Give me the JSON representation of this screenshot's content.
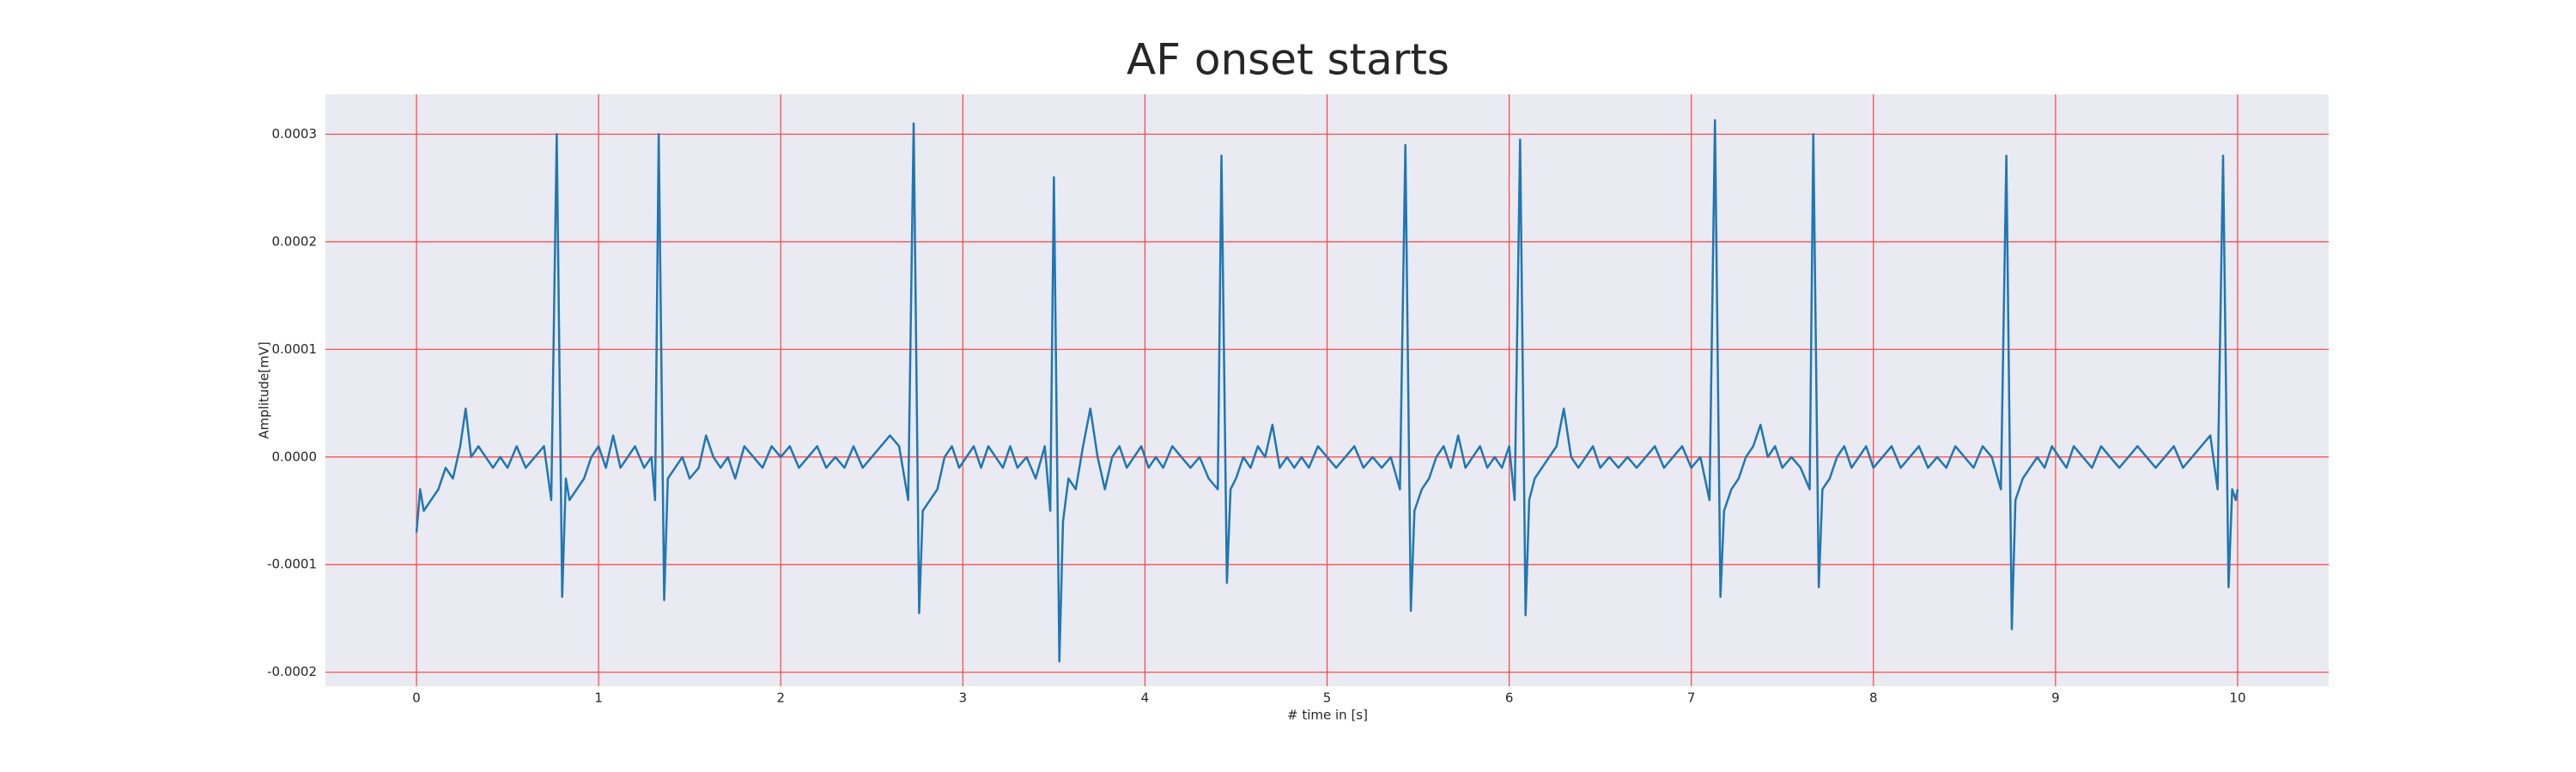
{
  "chart_data": {
    "type": "line",
    "title": "AF onset starts",
    "xlabel": "# time in [s]",
    "ylabel": "Amplitude[mV]",
    "xlim": [
      -0.5,
      10.5
    ],
    "ylim": [
      -0.000213,
      0.000337
    ],
    "xticks": [
      0,
      1,
      2,
      3,
      4,
      5,
      6,
      7,
      8,
      9,
      10
    ],
    "yticks": [
      -0.0002,
      -0.0001,
      {
        "value": 0,
        "label": "0.0000"
      },
      0.0001,
      0.0002,
      0.0003
    ],
    "grid": true,
    "grid_color": "#ff4040",
    "background": "#eaeaf2",
    "x": [
      0,
      0.02,
      0.04,
      0.08,
      0.12,
      0.16,
      0.2,
      0.24,
      0.27,
      0.3,
      0.34,
      0.38,
      0.42,
      0.46,
      0.5,
      0.55,
      0.6,
      0.65,
      0.7,
      0.74,
      0.77,
      0.8,
      0.82,
      0.84,
      0.88,
      0.92,
      0.96,
      1,
      1.04,
      1.08,
      1.12,
      1.16,
      1.2,
      1.25,
      1.29,
      1.31,
      1.33,
      1.36,
      1.38,
      1.42,
      1.46,
      1.5,
      1.55,
      1.59,
      1.63,
      1.67,
      1.71,
      1.75,
      1.8,
      1.85,
      1.9,
      1.95,
      2,
      2.05,
      2.1,
      2.15,
      2.2,
      2.25,
      2.3,
      2.35,
      2.4,
      2.45,
      2.5,
      2.55,
      2.6,
      2.65,
      2.7,
      2.73,
      2.76,
      2.78,
      2.82,
      2.86,
      2.9,
      2.94,
      2.98,
      3.02,
      3.06,
      3.1,
      3.14,
      3.18,
      3.22,
      3.26,
      3.3,
      3.35,
      3.4,
      3.45,
      3.48,
      3.5,
      3.53,
      3.55,
      3.58,
      3.62,
      3.66,
      3.7,
      3.74,
      3.78,
      3.82,
      3.86,
      3.9,
      3.94,
      3.98,
      4.02,
      4.06,
      4.1,
      4.15,
      4.2,
      4.25,
      4.3,
      4.35,
      4.4,
      4.42,
      4.45,
      4.47,
      4.5,
      4.54,
      4.58,
      4.62,
      4.66,
      4.7,
      4.74,
      4.78,
      4.82,
      4.86,
      4.9,
      4.95,
      5,
      5.05,
      5.1,
      5.15,
      5.2,
      5.25,
      5.3,
      5.35,
      5.4,
      5.43,
      5.46,
      5.48,
      5.52,
      5.56,
      5.6,
      5.64,
      5.68,
      5.72,
      5.76,
      5.8,
      5.84,
      5.88,
      5.92,
      5.96,
      6,
      6.03,
      6.06,
      6.09,
      6.11,
      6.14,
      6.18,
      6.22,
      6.26,
      6.3,
      6.34,
      6.38,
      6.42,
      6.46,
      6.5,
      6.55,
      6.6,
      6.65,
      6.7,
      6.75,
      6.8,
      6.85,
      6.9,
      6.95,
      7,
      7.05,
      7.1,
      7.13,
      7.16,
      7.18,
      7.22,
      7.26,
      7.3,
      7.34,
      7.38,
      7.42,
      7.46,
      7.5,
      7.55,
      7.6,
      7.65,
      7.67,
      7.7,
      7.72,
      7.76,
      7.8,
      7.84,
      7.88,
      7.92,
      7.96,
      8,
      8.05,
      8.1,
      8.15,
      8.2,
      8.25,
      8.3,
      8.35,
      8.4,
      8.45,
      8.5,
      8.55,
      8.6,
      8.65,
      8.7,
      8.73,
      8.76,
      8.78,
      8.82,
      8.86,
      8.9,
      8.94,
      8.98,
      9.02,
      9.06,
      9.1,
      9.15,
      9.2,
      9.25,
      9.3,
      9.35,
      9.4,
      9.45,
      9.5,
      9.55,
      9.6,
      9.65,
      9.7,
      9.75,
      9.8,
      9.85,
      9.89,
      9.92,
      9.95,
      9.97,
      9.99,
      10
    ],
    "series": [
      {
        "color": "#1f77b4",
        "values": [
          -7e-05,
          -3e-05,
          -5e-05,
          -4e-05,
          -3e-05,
          -1e-05,
          -2e-05,
          1e-05,
          4.5e-05,
          0,
          1e-05,
          0,
          -1e-05,
          0,
          -1e-05,
          1e-05,
          -1e-05,
          0,
          1e-05,
          -4e-05,
          0.0003,
          -0.00013,
          -2e-05,
          -4e-05,
          -3e-05,
          -2e-05,
          0,
          1e-05,
          -1e-05,
          2e-05,
          -1e-05,
          0,
          1e-05,
          -1e-05,
          0,
          -4e-05,
          0.0003,
          -0.000133,
          -2e-05,
          -1e-05,
          0,
          -2e-05,
          -1e-05,
          2e-05,
          0,
          -1e-05,
          0,
          -2e-05,
          1e-05,
          0,
          -1e-05,
          1e-05,
          0,
          1e-05,
          -1e-05,
          0,
          1e-05,
          -1e-05,
          0,
          -1e-05,
          1e-05,
          -1e-05,
          0,
          1e-05,
          2e-05,
          1e-05,
          -4e-05,
          0.00031,
          -0.000145,
          -5e-05,
          -4e-05,
          -3e-05,
          0,
          1e-05,
          -1e-05,
          0,
          1e-05,
          -1e-05,
          1e-05,
          0,
          -1e-05,
          1e-05,
          -1e-05,
          0,
          -2e-05,
          1e-05,
          -5e-05,
          0.00026,
          -0.00019,
          -6e-05,
          -2e-05,
          -3e-05,
          1e-05,
          4.5e-05,
          0,
          -3e-05,
          0,
          1e-05,
          -1e-05,
          0,
          1e-05,
          -1e-05,
          0,
          -1e-05,
          1e-05,
          0,
          -1e-05,
          0,
          -2e-05,
          -3e-05,
          0.00028,
          -0.000117,
          -3e-05,
          -2e-05,
          0,
          -1e-05,
          1e-05,
          0,
          3e-05,
          -1e-05,
          0,
          -1e-05,
          0,
          -1e-05,
          1e-05,
          0,
          -1e-05,
          0,
          1e-05,
          -1e-05,
          0,
          -1e-05,
          0,
          -3e-05,
          0.00029,
          -0.000143,
          -5e-05,
          -3e-05,
          -2e-05,
          0,
          1e-05,
          -1e-05,
          2e-05,
          -1e-05,
          0,
          1e-05,
          -1e-05,
          0,
          -1e-05,
          1e-05,
          -4e-05,
          0.000295,
          -0.000147,
          -4e-05,
          -2e-05,
          -1e-05,
          0,
          1e-05,
          4.5e-05,
          0,
          -1e-05,
          0,
          1e-05,
          -1e-05,
          0,
          -1e-05,
          0,
          -1e-05,
          0,
          1e-05,
          -1e-05,
          0,
          1e-05,
          -1e-05,
          0,
          -4e-05,
          0.000313,
          -0.00013,
          -5e-05,
          -3e-05,
          -2e-05,
          0,
          1e-05,
          3e-05,
          0,
          1e-05,
          -1e-05,
          0,
          -1e-05,
          -3e-05,
          0.0003,
          -0.000121,
          -3e-05,
          -2e-05,
          0,
          1e-05,
          -1e-05,
          0,
          1e-05,
          -1e-05,
          0,
          1e-05,
          -1e-05,
          0,
          1e-05,
          -1e-05,
          0,
          -1e-05,
          1e-05,
          0,
          -1e-05,
          1e-05,
          0,
          -3e-05,
          0.00028,
          -0.00016,
          -4e-05,
          -2e-05,
          -1e-05,
          0,
          -1e-05,
          1e-05,
          0,
          -1e-05,
          1e-05,
          0,
          -1e-05,
          1e-05,
          0,
          -1e-05,
          0,
          1e-05,
          0,
          -1e-05,
          0,
          1e-05,
          -1e-05,
          0,
          1e-05,
          2e-05,
          -3e-05,
          0.00028,
          -0.000121,
          -3e-05,
          -4e-05,
          -3e-05
        ]
      }
    ]
  }
}
